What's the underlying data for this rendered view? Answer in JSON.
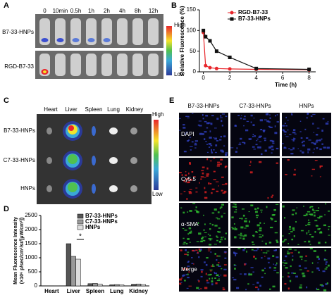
{
  "panel_letters": [
    "A",
    "B",
    "C",
    "D",
    "E"
  ],
  "panel_a": {
    "rows": [
      "B7-33-HNPs",
      "RGD-B7-33"
    ],
    "times": [
      "0",
      "10min",
      "0.5h",
      "1h",
      "2h",
      "4h",
      "8h",
      "12h"
    ],
    "scale": [
      "High",
      "Low"
    ]
  },
  "panel_c": {
    "organs": [
      "Heart",
      "Liver",
      "Spleen",
      "Lung",
      "Kidney"
    ],
    "rows": [
      "B7-33-HNPs",
      "C7-33-HNPs",
      "HNPs"
    ],
    "scale": [
      "High",
      "Low"
    ]
  },
  "panel_e": {
    "columns": [
      "B7-33-HNPs",
      "C7-33-HNPs",
      "HNPs"
    ],
    "rows": [
      "DAPI",
      "Cy5.5",
      "α-SMA",
      "Merge"
    ]
  },
  "chart_data": [
    {
      "type": "line",
      "x_label": "Time (h)",
      "y_label": "Relative Fluorescence (%)",
      "x": [
        0,
        0.167,
        0.5,
        1,
        2,
        4,
        8
      ],
      "series": [
        {
          "name": "RGD-B7-33",
          "color": "#e8262b",
          "marker": "circle",
          "values": [
            95,
            15,
            10,
            8,
            7,
            6,
            5
          ]
        },
        {
          "name": "B7-33-HNPs",
          "color": "#111111",
          "marker": "square",
          "values": [
            100,
            85,
            75,
            50,
            35,
            8,
            6
          ]
        }
      ],
      "xlim": [
        -0.3,
        8.5
      ],
      "xticks": [
        0,
        2,
        4,
        6,
        8
      ],
      "ylim": [
        0,
        150
      ],
      "yticks": [
        0,
        50,
        100,
        150
      ]
    },
    {
      "type": "bar",
      "y_label": [
        "Mean Fluorescence Intensity",
        "(×10⁶ p/sec/cm²/sr/[μW/cm²])"
      ],
      "categories": [
        "Heart",
        "Liver",
        "Spleen",
        "Lung",
        "Kidney"
      ],
      "series": [
        {
          "name": "B7-33-HNPs",
          "color": "#555555",
          "values": [
            5,
            1500,
            80,
            40,
            60
          ]
        },
        {
          "name": "C7-33-HNPs",
          "color": "#999999",
          "values": [
            5,
            1050,
            90,
            50,
            70
          ]
        },
        {
          "name": "HNPs",
          "color": "#dddddd",
          "values": [
            5,
            950,
            70,
            40,
            50
          ]
        }
      ],
      "annotation": "*",
      "ylim": [
        0,
        2500
      ],
      "yticks": [
        0,
        500,
        1000,
        1500,
        2000,
        2500
      ]
    }
  ]
}
